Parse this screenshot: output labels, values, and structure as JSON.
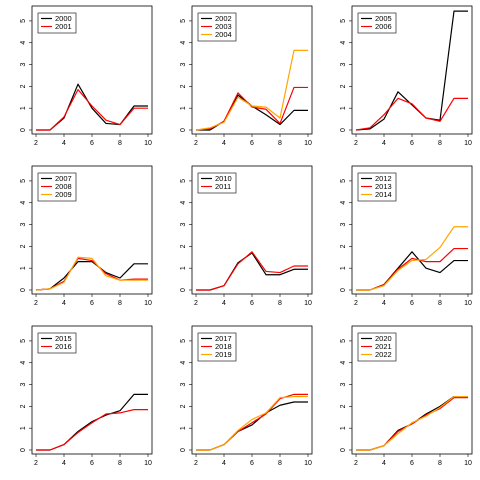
{
  "chart_data": [
    {
      "type": "line",
      "x": [
        2,
        3,
        4,
        5,
        6,
        7,
        8,
        9,
        10
      ],
      "xticks": [
        2,
        4,
        6,
        8,
        10
      ],
      "yticks": [
        0,
        1,
        2,
        3,
        4,
        5
      ],
      "xlim": [
        2,
        10
      ],
      "ylim": [
        0,
        5.5
      ],
      "legend": "top-left",
      "series": [
        {
          "name": "2000",
          "color": "#000000",
          "values": [
            0,
            0,
            0.55,
            2.1,
            1.0,
            0.3,
            0.25,
            1.1,
            1.1
          ]
        },
        {
          "name": "2001",
          "color": "#ff0000",
          "values": [
            0,
            0,
            0.6,
            1.85,
            1.1,
            0.45,
            0.25,
            1.0,
            1.0
          ]
        }
      ]
    },
    {
      "type": "line",
      "x": [
        2,
        3,
        4,
        5,
        6,
        7,
        8,
        9,
        10
      ],
      "xticks": [
        2,
        4,
        6,
        8,
        10
      ],
      "yticks": [
        0,
        1,
        2,
        3,
        4,
        5
      ],
      "xlim": [
        2,
        10
      ],
      "ylim": [
        0,
        5.5
      ],
      "legend": "top-left",
      "series": [
        {
          "name": "2002",
          "color": "#000000",
          "values": [
            0,
            0,
            0.4,
            1.6,
            1.1,
            0.7,
            0.25,
            0.9,
            0.9
          ]
        },
        {
          "name": "2003",
          "color": "#ff0000",
          "values": [
            0,
            0.05,
            0.4,
            1.7,
            1.05,
            0.95,
            0.3,
            1.95,
            1.95
          ]
        },
        {
          "name": "2004",
          "color": "#ffa500",
          "values": [
            0,
            0.1,
            0.35,
            1.5,
            1.1,
            1.05,
            0.55,
            3.65,
            3.65
          ]
        }
      ]
    },
    {
      "type": "line",
      "x": [
        2,
        3,
        4,
        5,
        6,
        7,
        8,
        9,
        10
      ],
      "xticks": [
        2,
        4,
        6,
        8,
        10
      ],
      "yticks": [
        0,
        1,
        2,
        3,
        4,
        5
      ],
      "xlim": [
        2,
        10
      ],
      "ylim": [
        0,
        5.5
      ],
      "legend": "top-left",
      "series": [
        {
          "name": "2005",
          "color": "#000000",
          "values": [
            0,
            0.05,
            0.5,
            1.75,
            1.15,
            0.55,
            0.45,
            5.45,
            5.45
          ]
        },
        {
          "name": "2006",
          "color": "#ff0000",
          "values": [
            0,
            0.1,
            0.7,
            1.45,
            1.2,
            0.55,
            0.4,
            1.45,
            1.45
          ]
        }
      ]
    },
    {
      "type": "line",
      "x": [
        2,
        3,
        4,
        5,
        6,
        7,
        8,
        9,
        10
      ],
      "xticks": [
        2,
        4,
        6,
        8,
        10
      ],
      "yticks": [
        0,
        1,
        2,
        3,
        4,
        5
      ],
      "xlim": [
        2,
        10
      ],
      "ylim": [
        0,
        5.5
      ],
      "legend": "top-left",
      "series": [
        {
          "name": "2007",
          "color": "#000000",
          "values": [
            0,
            0.05,
            0.55,
            1.3,
            1.3,
            0.8,
            0.55,
            1.2,
            1.2
          ]
        },
        {
          "name": "2008",
          "color": "#ff0000",
          "values": [
            0,
            0.05,
            0.4,
            1.45,
            1.35,
            0.75,
            0.45,
            0.5,
            0.5
          ]
        },
        {
          "name": "2009",
          "color": "#ffa500",
          "values": [
            0,
            0.05,
            0.35,
            1.5,
            1.45,
            0.65,
            0.45,
            0.45,
            0.45
          ]
        }
      ]
    },
    {
      "type": "line",
      "x": [
        2,
        3,
        4,
        5,
        6,
        7,
        8,
        9,
        10
      ],
      "xticks": [
        2,
        4,
        6,
        8,
        10
      ],
      "yticks": [
        0,
        1,
        2,
        3,
        4,
        5
      ],
      "xlim": [
        2,
        10
      ],
      "ylim": [
        0,
        5.5
      ],
      "legend": "top-left",
      "series": [
        {
          "name": "2010",
          "color": "#000000",
          "values": [
            0,
            0,
            0.2,
            1.25,
            1.7,
            0.7,
            0.7,
            0.95,
            0.95
          ]
        },
        {
          "name": "2011",
          "color": "#ff0000",
          "values": [
            0,
            0,
            0.2,
            1.2,
            1.75,
            0.85,
            0.8,
            1.1,
            1.1
          ]
        }
      ]
    },
    {
      "type": "line",
      "x": [
        2,
        3,
        4,
        5,
        6,
        7,
        8,
        9,
        10
      ],
      "xticks": [
        2,
        4,
        6,
        8,
        10
      ],
      "yticks": [
        0,
        1,
        2,
        3,
        4,
        5
      ],
      "xlim": [
        2,
        10
      ],
      "ylim": [
        0,
        5.5
      ],
      "legend": "top-left",
      "series": [
        {
          "name": "2012",
          "color": "#000000",
          "values": [
            0,
            0,
            0.25,
            1.0,
            1.75,
            1.0,
            0.8,
            1.35,
            1.35
          ]
        },
        {
          "name": "2013",
          "color": "#ff0000",
          "values": [
            0,
            0,
            0.25,
            0.95,
            1.45,
            1.3,
            1.3,
            1.9,
            1.9
          ]
        },
        {
          "name": "2014",
          "color": "#ffa500",
          "values": [
            0,
            0,
            0.2,
            0.9,
            1.35,
            1.4,
            1.95,
            2.9,
            2.9
          ]
        }
      ]
    },
    {
      "type": "line",
      "x": [
        2,
        3,
        4,
        5,
        6,
        7,
        8,
        9,
        10
      ],
      "xticks": [
        2,
        4,
        6,
        8,
        10
      ],
      "yticks": [
        0,
        1,
        2,
        3,
        4,
        5
      ],
      "xlim": [
        2,
        10
      ],
      "ylim": [
        0,
        5.5
      ],
      "legend": "top-left",
      "series": [
        {
          "name": "2015",
          "color": "#000000",
          "values": [
            0,
            0,
            0.25,
            0.85,
            1.3,
            1.6,
            1.8,
            2.55,
            2.55
          ]
        },
        {
          "name": "2016",
          "color": "#ff0000",
          "values": [
            0,
            0,
            0.25,
            0.8,
            1.25,
            1.65,
            1.7,
            1.85,
            1.85
          ]
        }
      ]
    },
    {
      "type": "line",
      "x": [
        2,
        3,
        4,
        5,
        6,
        7,
        8,
        9,
        10
      ],
      "xticks": [
        2,
        4,
        6,
        8,
        10
      ],
      "yticks": [
        0,
        1,
        2,
        3,
        4,
        5
      ],
      "xlim": [
        2,
        10
      ],
      "ylim": [
        0,
        5.5
      ],
      "legend": "top-left",
      "series": [
        {
          "name": "2017",
          "color": "#000000",
          "values": [
            0,
            0,
            0.25,
            0.85,
            1.15,
            1.7,
            2.05,
            2.2,
            2.2
          ]
        },
        {
          "name": "2018",
          "color": "#ff0000",
          "values": [
            0,
            0,
            0.25,
            0.85,
            1.25,
            1.65,
            2.35,
            2.55,
            2.55
          ]
        },
        {
          "name": "2019",
          "color": "#ffa500",
          "values": [
            0,
            0,
            0.25,
            0.9,
            1.4,
            1.7,
            2.4,
            2.45,
            2.45
          ]
        }
      ]
    },
    {
      "type": "line",
      "x": [
        2,
        3,
        4,
        5,
        6,
        7,
        8,
        9,
        10
      ],
      "xticks": [
        2,
        4,
        6,
        8,
        10
      ],
      "yticks": [
        0,
        1,
        2,
        3,
        4,
        5
      ],
      "xlim": [
        2,
        10
      ],
      "ylim": [
        0,
        5.5
      ],
      "legend": "top-left",
      "series": [
        {
          "name": "2020",
          "color": "#000000",
          "values": [
            0,
            0,
            0.2,
            0.9,
            1.2,
            1.65,
            2.0,
            2.45,
            2.45
          ]
        },
        {
          "name": "2021",
          "color": "#ff0000",
          "values": [
            0,
            0,
            0.2,
            0.85,
            1.2,
            1.6,
            1.9,
            2.4,
            2.4
          ]
        },
        {
          "name": "2022",
          "color": "#ffa500",
          "values": [
            0,
            0,
            0.2,
            0.75,
            1.25,
            1.55,
            1.95,
            2.45,
            2.45
          ]
        }
      ]
    }
  ]
}
